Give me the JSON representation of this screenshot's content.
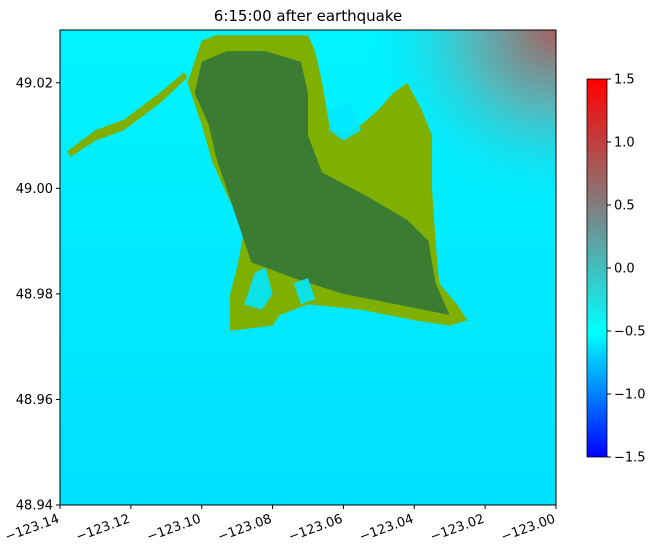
{
  "chart_data": {
    "type": "heatmap",
    "title": "6:15:00 after earthquake",
    "xlabel": "",
    "ylabel": "",
    "xlim": [
      -123.14,
      -123.0
    ],
    "ylim": [
      48.94,
      49.03
    ],
    "x_ticks": [
      -123.14,
      -123.12,
      -123.1,
      -123.08,
      -123.06,
      -123.04,
      -123.02,
      -123.0
    ],
    "x_tick_labels": [
      "−123.14",
      "−123.12",
      "−123.10",
      "−123.08",
      "−123.06",
      "−123.04",
      "−123.02",
      "−123.00"
    ],
    "y_ticks": [
      48.94,
      48.96,
      48.98,
      49.0,
      49.02
    ],
    "y_tick_labels": [
      "48.94",
      "48.96",
      "48.98",
      "49.00",
      "49.02"
    ],
    "colorbar": {
      "range": [
        -1.5,
        1.5
      ],
      "ticks": [
        -1.5,
        -1.0,
        -0.5,
        0.0,
        0.5,
        1.0,
        1.5
      ],
      "tick_labels": [
        "−1.5",
        "−1.0",
        "−0.5",
        "0.0",
        "0.5",
        "1.0",
        "1.5"
      ],
      "colors": [
        "#0000ff",
        "#00ffff",
        "#808080",
        "#ff0000"
      ]
    },
    "colors": {
      "ocean": "#00e8ff",
      "land_low": "#7fb000",
      "land_high": "#3a7d32",
      "inundated_high": "#a8605e"
    },
    "land_outline": [
      [
        -123.1,
        49.028
      ],
      [
        -123.096,
        49.029
      ],
      [
        -123.07,
        49.029
      ],
      [
        -123.068,
        49.026
      ],
      [
        -123.066,
        49.02
      ],
      [
        -123.064,
        49.012
      ],
      [
        -123.06,
        49.01
      ],
      [
        -123.055,
        49.012
      ],
      [
        -123.05,
        49.015
      ],
      [
        -123.046,
        49.018
      ],
      [
        -123.042,
        49.02
      ],
      [
        -123.038,
        49.015
      ],
      [
        -123.035,
        49.01
      ],
      [
        -123.035,
        49.0
      ],
      [
        -123.034,
        48.99
      ],
      [
        -123.033,
        48.982
      ],
      [
        -123.028,
        48.978
      ],
      [
        -123.025,
        48.975
      ],
      [
        -123.03,
        48.974
      ],
      [
        -123.04,
        48.975
      ],
      [
        -123.055,
        48.977
      ],
      [
        -123.07,
        48.978
      ],
      [
        -123.078,
        48.976
      ],
      [
        -123.08,
        48.974
      ],
      [
        -123.092,
        48.973
      ],
      [
        -123.092,
        48.98
      ],
      [
        -123.09,
        48.985
      ],
      [
        -123.088,
        48.992
      ],
      [
        -123.093,
        48.999
      ],
      [
        -123.097,
        49.005
      ],
      [
        -123.1,
        49.012
      ],
      [
        -123.104,
        49.02
      ]
    ],
    "land_core": [
      [
        -123.1,
        49.024
      ],
      [
        -123.093,
        49.026
      ],
      [
        -123.082,
        49.026
      ],
      [
        -123.072,
        49.024
      ],
      [
        -123.07,
        49.018
      ],
      [
        -123.07,
        49.01
      ],
      [
        -123.066,
        49.003
      ],
      [
        -123.052,
        48.998
      ],
      [
        -123.042,
        48.994
      ],
      [
        -123.036,
        48.99
      ],
      [
        -123.034,
        48.982
      ],
      [
        -123.03,
        48.976
      ],
      [
        -123.045,
        48.978
      ],
      [
        -123.06,
        48.98
      ],
      [
        -123.074,
        48.983
      ],
      [
        -123.086,
        48.986
      ],
      [
        -123.089,
        48.992
      ],
      [
        -123.093,
        49.0
      ],
      [
        -123.096,
        49.006
      ],
      [
        -123.098,
        49.012
      ],
      [
        -123.102,
        49.018
      ]
    ],
    "spit": [
      [
        -123.138,
        49.007
      ],
      [
        -123.13,
        49.011
      ],
      [
        -123.122,
        49.013
      ],
      [
        -123.112,
        49.018
      ],
      [
        -123.105,
        49.022
      ],
      [
        -123.104,
        49.021
      ],
      [
        -123.112,
        49.016
      ],
      [
        -123.122,
        49.011
      ],
      [
        -123.13,
        49.009
      ],
      [
        -123.137,
        49.006
      ]
    ],
    "inundation_patches": [
      [
        [
          -123.064,
          49.015
        ],
        [
          -123.058,
          49.016
        ],
        [
          -123.055,
          49.011
        ],
        [
          -123.06,
          49.009
        ],
        [
          -123.064,
          49.011
        ]
      ],
      [
        [
          -123.085,
          48.984
        ],
        [
          -123.082,
          48.985
        ],
        [
          -123.08,
          48.98
        ],
        [
          -123.083,
          48.977
        ],
        [
          -123.088,
          48.978
        ]
      ],
      [
        [
          -123.074,
          48.982
        ],
        [
          -123.07,
          48.983
        ],
        [
          -123.068,
          48.979
        ],
        [
          -123.072,
          48.978
        ]
      ]
    ]
  }
}
